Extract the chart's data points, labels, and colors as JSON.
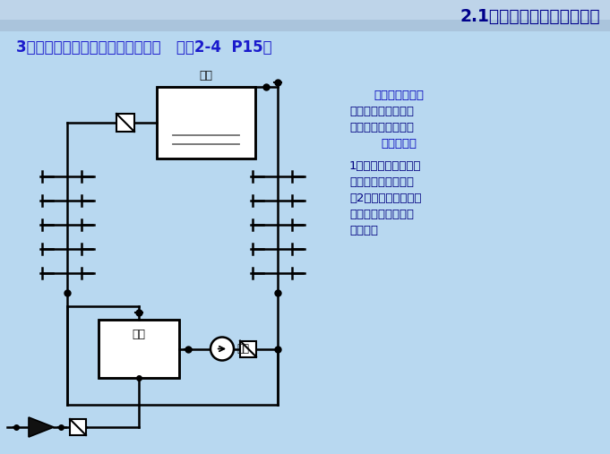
{
  "title": "2.1建筑给水系统和给水方式",
  "subtitle": "3．设水池、水泵、水箱的给水方式   （图2-4  P15）",
  "bg_color_main": "#b8d8f0",
  "bg_color_header": "#a8c8e4",
  "text_color_title": "#00008B",
  "text_color_sub": "#1a1acc",
  "text_color_body": "#000080",
  "water_tank_label": "水箱",
  "water_pool_label": "水池",
  "water_pump_label": "水泵",
  "line_color": "#000000",
  "tank_fill_top": "#c8dce8",
  "tank_fill_body": "#d0d0d0",
  "condition_line1": "适用条件：外网",
  "condition_line2": "的水压经常性不足且",
  "condition_line3": "建筑内部用水不均匀",
  "condition_line4": "主要特点：",
  "feature_line1": "1）由水泵向水箱及时",
  "feature_line2": "供水，保证系统水压",
  "feature_line3": "；2）通过水箱调节供",
  "feature_line4": "水和用水之间的不平",
  "feature_line5": "衡流量。"
}
